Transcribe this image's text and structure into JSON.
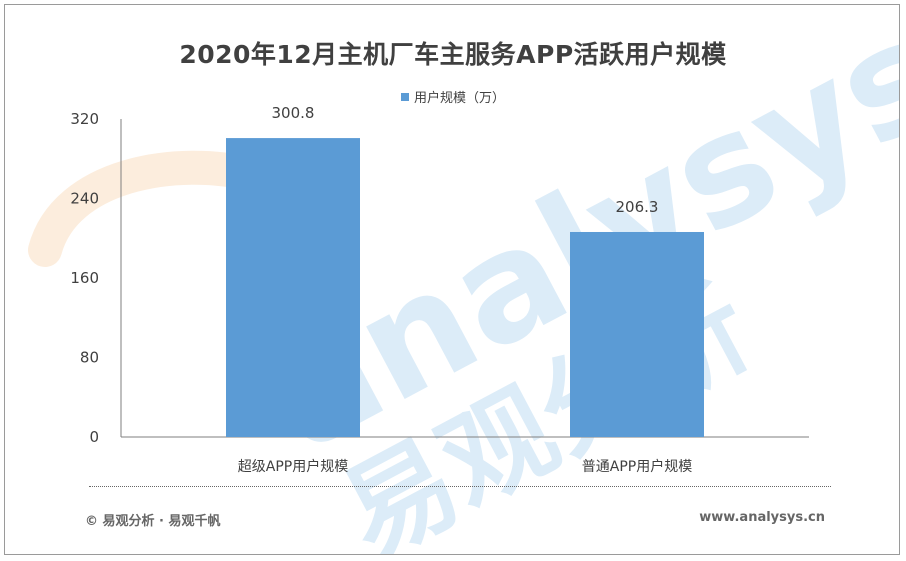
{
  "colors": {
    "bar": "#5b9bd5",
    "text": "#404040",
    "footer": "#666666",
    "watermark": "#dcecf8"
  },
  "watermark": {
    "latin": "analysys",
    "chinese": "易观分析"
  },
  "footer": {
    "copyright": "© 易观分析 · 易观千帆",
    "website": "www.analysys.cn"
  },
  "chart_data": {
    "type": "bar",
    "title": "2020年12月主机厂车主服务APP活跃用户规模",
    "xlabel": "",
    "ylabel": "",
    "categories": [
      "超级APP用户规模",
      "普通APP用户规模"
    ],
    "series": [
      {
        "name": "用户规模（万）",
        "values": [
          300.8,
          206.3
        ]
      }
    ],
    "data_labels": [
      "300.8",
      "206.3"
    ],
    "ylim": [
      0,
      320
    ],
    "yticks": [
      "0",
      "80",
      "160",
      "240",
      "320"
    ],
    "legend": "top-center",
    "grid": false
  }
}
